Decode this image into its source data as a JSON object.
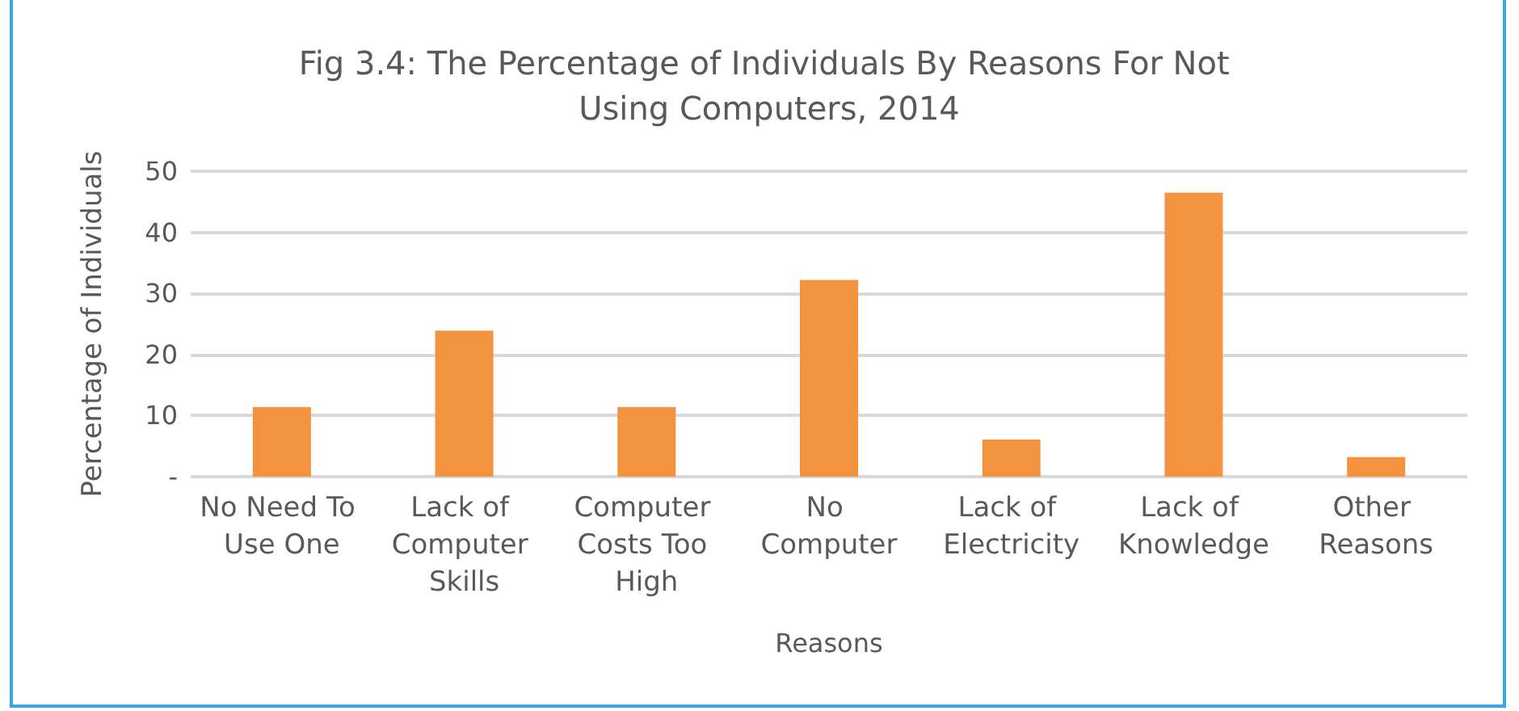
{
  "chart_data": {
    "type": "bar",
    "title": "Fig 3.4: The Percentage of Individuals By Reasons For Not Using Computers, 2014",
    "xlabel": "Reasons",
    "ylabel": "Percentage of Individuals",
    "categories": [
      "No Need To Use One",
      "Lack of Computer Skills",
      "Computer Costs Too High",
      "No Computer",
      "Lack of Electricity",
      "Lack of Knowledge",
      "Other Reasons"
    ],
    "values": [
      11.4,
      23.9,
      11.4,
      32.2,
      6.1,
      46.5,
      3.2
    ],
    "color": "#f39340",
    "ylim": [
      0,
      50
    ],
    "yticks": [
      {
        "value": 0,
        "label": "-"
      },
      10,
      20,
      30,
      40,
      50
    ],
    "grid": "y"
  }
}
